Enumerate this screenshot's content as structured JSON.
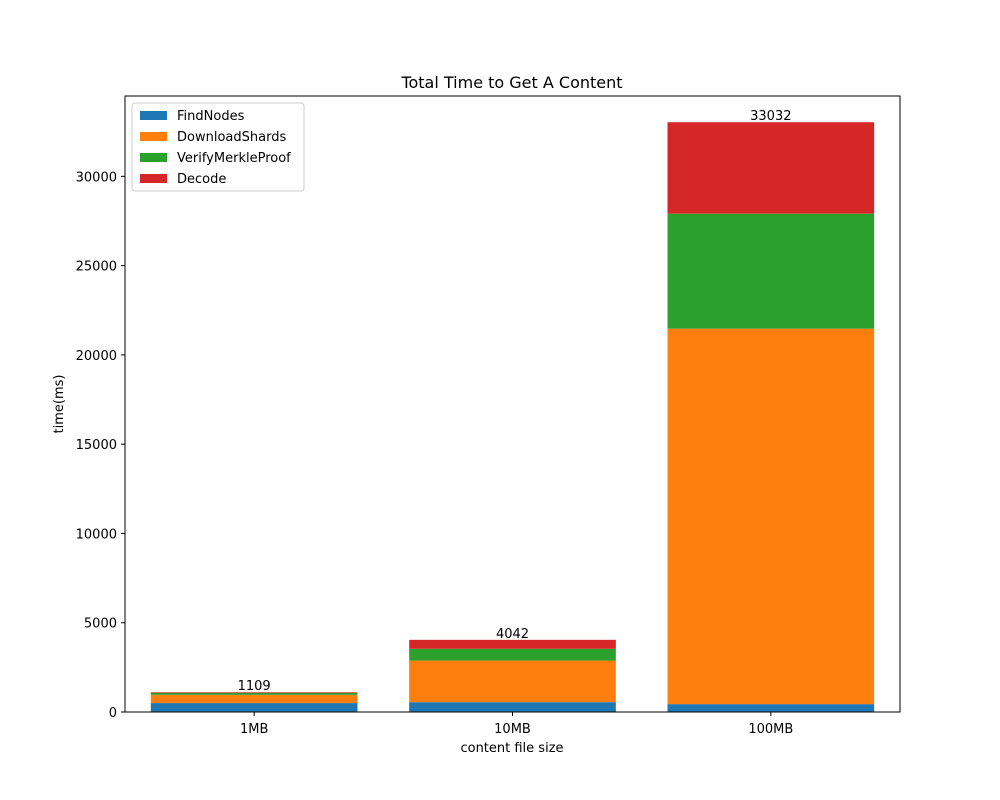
{
  "chart_data": {
    "type": "bar",
    "stacked": true,
    "title": "Total Time to Get A Content",
    "xlabel": "content file size",
    "ylabel": "time(ms)",
    "categories": [
      "1MB",
      "10MB",
      "100MB"
    ],
    "series": [
      {
        "name": "FindNodes",
        "color": "#1f77b4",
        "values": [
          500,
          550,
          440
        ]
      },
      {
        "name": "DownloadShards",
        "color": "#ff7f0e",
        "values": [
          460,
          2330,
          21030
        ]
      },
      {
        "name": "VerifyMerkleProof",
        "color": "#2ca02c",
        "values": [
          110,
          660,
          6440
        ]
      },
      {
        "name": "Decode",
        "color": "#d62728",
        "values": [
          39,
          502,
          5122
        ]
      }
    ],
    "totals": [
      "1109",
      "4042",
      "33032"
    ],
    "ylim": [
      0,
      34500
    ],
    "yticks": [
      0,
      5000,
      10000,
      15000,
      20000,
      25000,
      30000
    ],
    "ytick_labels": [
      "0",
      "5000",
      "10000",
      "15000",
      "20000",
      "25000",
      "30000"
    ],
    "legend_position": "upper-left",
    "grid": false
  }
}
